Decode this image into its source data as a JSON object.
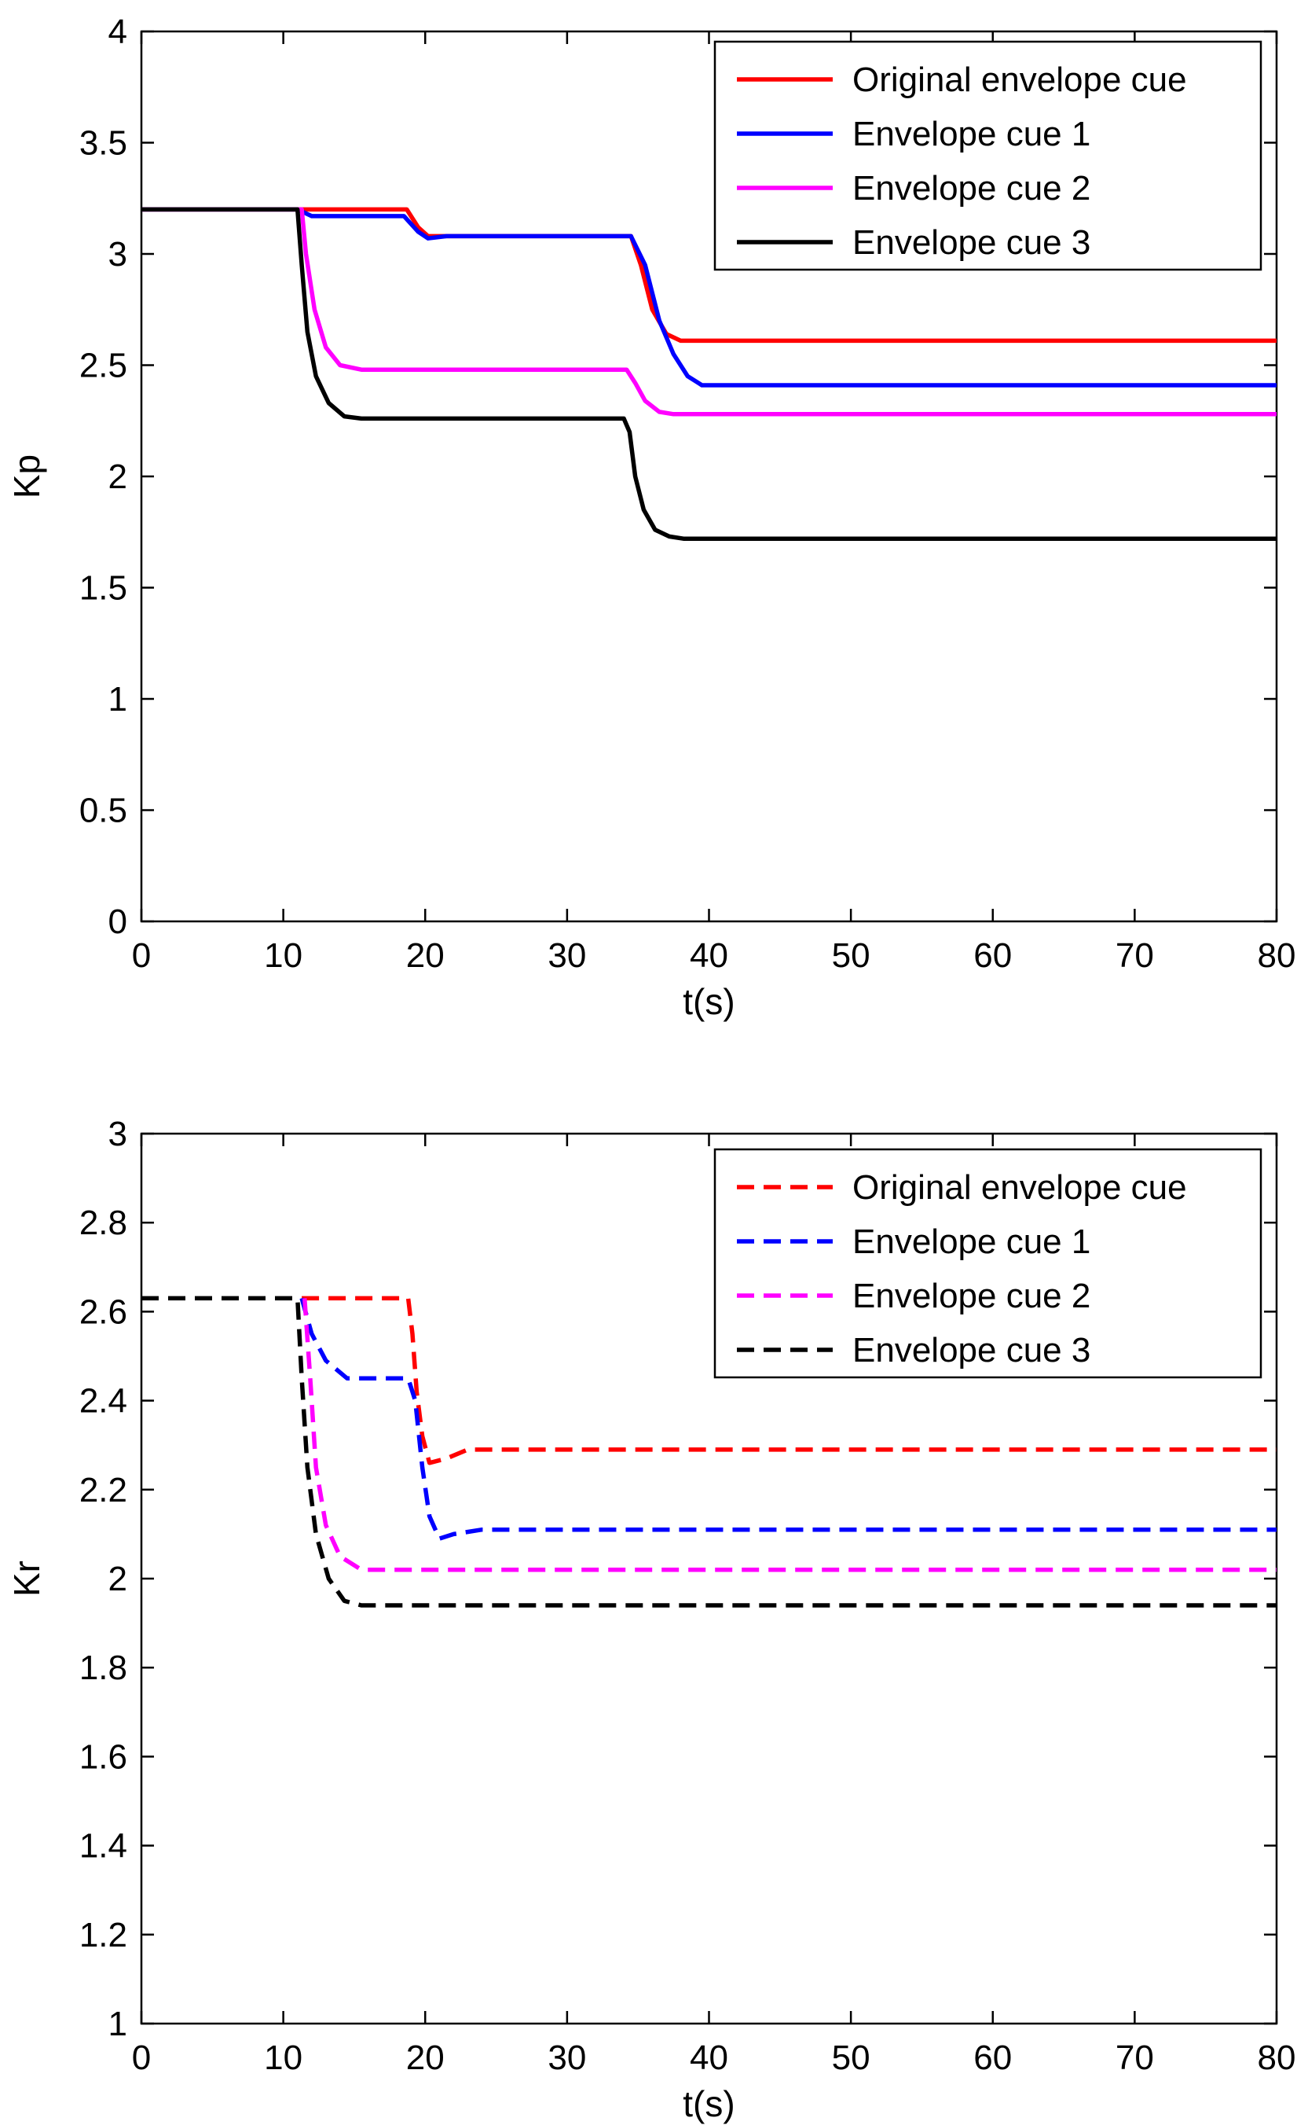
{
  "chart_data": [
    {
      "type": "line",
      "xlabel": "t(s)",
      "ylabel": "Kp",
      "xlim": [
        0,
        80
      ],
      "ylim": [
        0,
        4
      ],
      "xticks": [
        0,
        10,
        20,
        30,
        40,
        50,
        60,
        70,
        80
      ],
      "yticks": [
        0,
        0.5,
        1,
        1.5,
        2,
        2.5,
        3,
        3.5,
        4
      ],
      "grid": false,
      "legend_position": "top-right",
      "series": [
        {
          "name": "Original envelope cue",
          "color": "#ff0000",
          "line_style": "solid",
          "points": [
            [
              0,
              3.2
            ],
            [
              18.7,
              3.2
            ],
            [
              19.5,
              3.12
            ],
            [
              20.2,
              3.08
            ],
            [
              22,
              3.08
            ],
            [
              34.5,
              3.08
            ],
            [
              35.2,
              2.95
            ],
            [
              36,
              2.75
            ],
            [
              37,
              2.64
            ],
            [
              38,
              2.61
            ],
            [
              80,
              2.61
            ]
          ]
        },
        {
          "name": "Envelope cue 1",
          "color": "#0000ff",
          "line_style": "solid",
          "points": [
            [
              0,
              3.2
            ],
            [
              11,
              3.2
            ],
            [
              12,
              3.17
            ],
            [
              18.5,
              3.17
            ],
            [
              19.5,
              3.1
            ],
            [
              20.2,
              3.07
            ],
            [
              21.5,
              3.08
            ],
            [
              34.5,
              3.08
            ],
            [
              35.5,
              2.95
            ],
            [
              36.5,
              2.7
            ],
            [
              37.5,
              2.55
            ],
            [
              38.5,
              2.45
            ],
            [
              39.5,
              2.41
            ],
            [
              80,
              2.41
            ]
          ]
        },
        {
          "name": "Envelope cue 2",
          "color": "#ff00ff",
          "line_style": "solid",
          "points": [
            [
              0,
              3.2
            ],
            [
              11.3,
              3.2
            ],
            [
              11.6,
              3.0
            ],
            [
              12.2,
              2.75
            ],
            [
              13,
              2.58
            ],
            [
              14,
              2.5
            ],
            [
              15.5,
              2.48
            ],
            [
              34.2,
              2.48
            ],
            [
              34.8,
              2.42
            ],
            [
              35.5,
              2.34
            ],
            [
              36.5,
              2.29
            ],
            [
              37.5,
              2.28
            ],
            [
              80,
              2.28
            ]
          ]
        },
        {
          "name": "Envelope cue 3",
          "color": "#000000",
          "line_style": "solid",
          "points": [
            [
              0,
              3.2
            ],
            [
              11,
              3.2
            ],
            [
              11.3,
              2.95
            ],
            [
              11.7,
              2.65
            ],
            [
              12.3,
              2.45
            ],
            [
              13.2,
              2.33
            ],
            [
              14.3,
              2.27
            ],
            [
              15.5,
              2.26
            ],
            [
              34,
              2.26
            ],
            [
              34.4,
              2.2
            ],
            [
              34.8,
              2.0
            ],
            [
              35.4,
              1.85
            ],
            [
              36.2,
              1.76
            ],
            [
              37.2,
              1.73
            ],
            [
              38.2,
              1.72
            ],
            [
              80,
              1.72
            ]
          ]
        }
      ]
    },
    {
      "type": "line",
      "xlabel": "t(s)",
      "ylabel": "Kr",
      "xlim": [
        0,
        80
      ],
      "ylim": [
        1,
        3
      ],
      "xticks": [
        0,
        10,
        20,
        30,
        40,
        50,
        60,
        70,
        80
      ],
      "yticks": [
        1,
        1.2,
        1.4,
        1.6,
        1.8,
        2,
        2.2,
        2.4,
        2.6,
        2.8,
        3
      ],
      "grid": false,
      "legend_position": "top-right",
      "series": [
        {
          "name": "Original envelope cue",
          "color": "#ff0000",
          "line_style": "dashed",
          "points": [
            [
              11.3,
              2.63
            ],
            [
              18.8,
              2.63
            ],
            [
              19.1,
              2.55
            ],
            [
              19.4,
              2.42
            ],
            [
              19.8,
              2.32
            ],
            [
              20.3,
              2.26
            ],
            [
              21.5,
              2.27
            ],
            [
              23,
              2.29
            ],
            [
              80,
              2.29
            ]
          ]
        },
        {
          "name": "Envelope cue 1",
          "color": "#0000ff",
          "line_style": "dashed",
          "points": [
            [
              11.3,
              2.63
            ],
            [
              12,
              2.55
            ],
            [
              13,
              2.49
            ],
            [
              14.5,
              2.45
            ],
            [
              18.8,
              2.45
            ],
            [
              19.3,
              2.4
            ],
            [
              19.8,
              2.25
            ],
            [
              20.3,
              2.14
            ],
            [
              21,
              2.09
            ],
            [
              22,
              2.1
            ],
            [
              24,
              2.11
            ],
            [
              80,
              2.11
            ]
          ]
        },
        {
          "name": "Envelope cue 2",
          "color": "#ff00ff",
          "line_style": "dashed",
          "points": [
            [
              11.5,
              2.63
            ],
            [
              11.9,
              2.45
            ],
            [
              12.3,
              2.25
            ],
            [
              13,
              2.12
            ],
            [
              14,
              2.05
            ],
            [
              15.5,
              2.02
            ],
            [
              80,
              2.02
            ]
          ]
        },
        {
          "name": "Envelope cue 3",
          "color": "#000000",
          "line_style": "dashed",
          "points": [
            [
              0,
              2.63
            ],
            [
              11,
              2.63
            ],
            [
              11.3,
              2.45
            ],
            [
              11.7,
              2.25
            ],
            [
              12.3,
              2.1
            ],
            [
              13.2,
              2.0
            ],
            [
              14.3,
              1.95
            ],
            [
              15.5,
              1.94
            ],
            [
              80,
              1.94
            ]
          ]
        }
      ]
    }
  ]
}
